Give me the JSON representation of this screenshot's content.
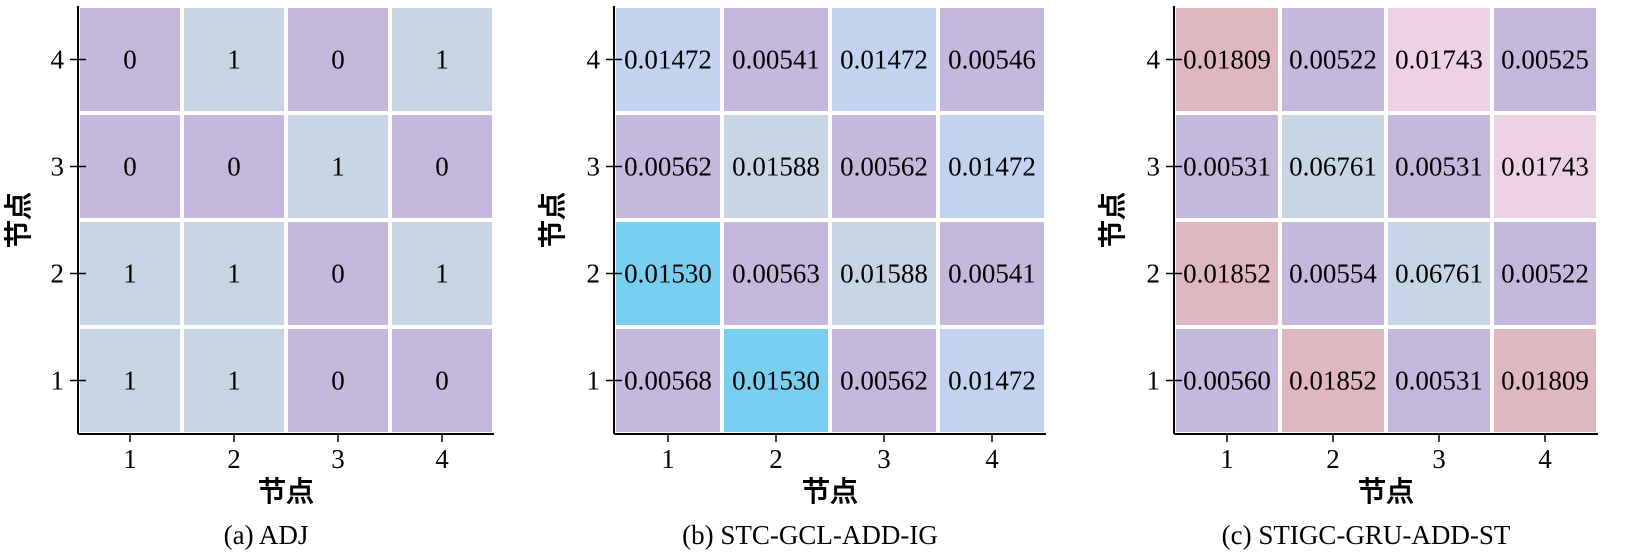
{
  "chart_data": [
    {
      "type": "heatmap",
      "caption": "(a) ADJ",
      "xlabel": "节点",
      "ylabel": "节点",
      "x_ticks": [
        "1",
        "2",
        "3",
        "4"
      ],
      "y_ticks": [
        "4",
        "3",
        "2",
        "1"
      ],
      "cell_labels": [
        [
          "0",
          "1",
          "0",
          "1"
        ],
        [
          "0",
          "0",
          "1",
          "0"
        ],
        [
          "1",
          "1",
          "0",
          "1"
        ],
        [
          "1",
          "1",
          "0",
          "0"
        ]
      ],
      "cell_colors": [
        [
          "#c5b8dd",
          "#c8d5e4",
          "#c5b8dd",
          "#c8d5e4"
        ],
        [
          "#c5b8dd",
          "#c5b8dd",
          "#c8d5e4",
          "#c5b8dd"
        ],
        [
          "#c8d5e4",
          "#c8d5e4",
          "#c5b8dd",
          "#c8d5e4"
        ],
        [
          "#c8d5e4",
          "#c8d5e4",
          "#c5b8dd",
          "#c5b8dd"
        ]
      ]
    },
    {
      "type": "heatmap",
      "caption": "(b) STC-GCL-ADD-IG",
      "xlabel": "节点",
      "ylabel": "节点",
      "x_ticks": [
        "1",
        "2",
        "3",
        "4"
      ],
      "y_ticks": [
        "4",
        "3",
        "2",
        "1"
      ],
      "cell_labels": [
        [
          "0.01472",
          "0.00541",
          "0.01472",
          "0.00546"
        ],
        [
          "0.00562",
          "0.01588",
          "0.00562",
          "0.01472"
        ],
        [
          "0.01530",
          "0.00563",
          "0.01588",
          "0.00541"
        ],
        [
          "0.00568",
          "0.01530",
          "0.00562",
          "0.01472"
        ]
      ],
      "cell_colors": [
        [
          "#c3d2ee",
          "#c5b8dd",
          "#c3d2ee",
          "#c5b8dd"
        ],
        [
          "#c5b8dd",
          "#c8d5e4",
          "#c5b8dd",
          "#c3d2ee"
        ],
        [
          "#78cff0",
          "#c5b8dd",
          "#c8d5e4",
          "#c5b8dd"
        ],
        [
          "#c5b8dd",
          "#78cff0",
          "#c5b8dd",
          "#c3d2ee"
        ]
      ]
    },
    {
      "type": "heatmap",
      "caption": "(c) STIGC-GRU-ADD-ST",
      "xlabel": "节点",
      "ylabel": "节点",
      "x_ticks": [
        "1",
        "2",
        "3",
        "4"
      ],
      "y_ticks": [
        "4",
        "3",
        "2",
        "1"
      ],
      "cell_labels": [
        [
          "0.01809",
          "0.00522",
          "0.01743",
          "0.00525"
        ],
        [
          "0.00531",
          "0.06761",
          "0.00531",
          "0.01743"
        ],
        [
          "0.01852",
          "0.00554",
          "0.06761",
          "0.00522"
        ],
        [
          "0.00560",
          "0.01852",
          "0.00531",
          "0.01809"
        ]
      ],
      "cell_colors": [
        [
          "#dfb7c0",
          "#c5b8dd",
          "#ecd2e4",
          "#c5b8dd"
        ],
        [
          "#c5b8dd",
          "#c8d5e4",
          "#c5b8dd",
          "#ecd2e4"
        ],
        [
          "#dfb7c0",
          "#c5b8dd",
          "#c8d5e4",
          "#c5b8dd"
        ],
        [
          "#c5b8dd",
          "#dfb7c0",
          "#c5b8dd",
          "#dfb7c0"
        ]
      ]
    }
  ]
}
